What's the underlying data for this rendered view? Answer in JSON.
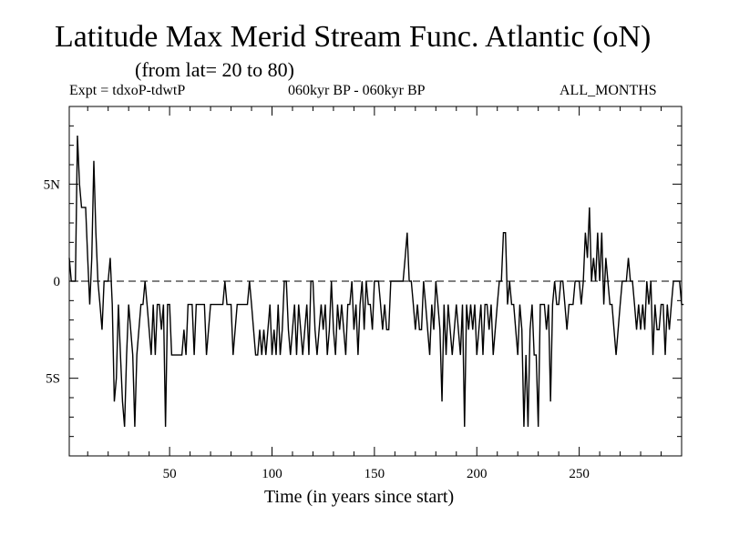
{
  "header": {
    "title": "Latitude Max Merid Stream Func. Atlantic (oN)",
    "subtitle": "(from lat= 20 to 80)",
    "expt": "Expt = tdxoP-tdwtP",
    "period": "060kyr BP - 060kyr BP",
    "months": "ALL_MONTHS"
  },
  "chart_data": {
    "type": "line",
    "title": "Latitude Max Merid Stream Func. Atlantic (oN)",
    "xlabel": "Time (in years since start)",
    "ylabel": "",
    "xlim": [
      1,
      300
    ],
    "ylim": [
      -9,
      9
    ],
    "x_ticks": [
      50,
      100,
      150,
      200,
      250
    ],
    "x_tick_labels": [
      "50",
      "100",
      "150",
      "200",
      "250"
    ],
    "y_ticks": [
      5,
      0,
      -5
    ],
    "y_tick_labels": [
      "5N",
      "0",
      "5S"
    ],
    "zero_line": "dashed",
    "grid": false,
    "series": [
      {
        "x_start": 1,
        "x_step": 1,
        "values": [
          1.2,
          0,
          0,
          0,
          7.5,
          5,
          3.8,
          3.8,
          3.8,
          1.2,
          -1.2,
          1.2,
          6.2,
          2.5,
          0,
          -1.2,
          -2.5,
          0,
          0,
          0,
          1.2,
          -1.2,
          -6.2,
          -5,
          -1.2,
          -3.8,
          -6.2,
          -7.5,
          -3.8,
          -1.2,
          -2.5,
          -3.8,
          -7.5,
          -3.8,
          -2.5,
          -1.2,
          -1.2,
          0,
          -1.2,
          -2.5,
          -3.8,
          -1.2,
          -3.8,
          -1.2,
          -1.2,
          -2.5,
          -1.2,
          -7.5,
          -1.2,
          -1.2,
          -3.8,
          -3.8,
          -3.8,
          -3.8,
          -3.8,
          -3.8,
          -2.5,
          -3.8,
          -1.2,
          -1.2,
          -1.2,
          -3.8,
          -1.2,
          -1.2,
          -1.2,
          -1.2,
          -1.2,
          -3.8,
          -2.5,
          -1.2,
          -1.2,
          -1.2,
          -1.2,
          -1.2,
          -1.2,
          -1.2,
          0,
          -1.2,
          -1.2,
          -1.2,
          -3.8,
          -2.5,
          -1.2,
          -1.2,
          -1.2,
          -1.2,
          -1.2,
          -1.2,
          0,
          -1.2,
          -2.5,
          -3.8,
          -3.8,
          -2.5,
          -3.8,
          -2.5,
          -3.8,
          -2.5,
          -1.2,
          -3.8,
          -2.5,
          -3.8,
          -1.2,
          -3.8,
          -2.5,
          0,
          0,
          -2.5,
          -3.8,
          -2.5,
          -1.2,
          -3.8,
          -1.2,
          -2.5,
          -3.8,
          -2.5,
          -1.2,
          -3.8,
          0,
          0,
          -2.5,
          -3.8,
          -2.5,
          -1.2,
          -2.5,
          -1.2,
          -3.8,
          -2.5,
          0,
          -2.5,
          -3.8,
          -1.2,
          -2.5,
          -1.2,
          -2.5,
          -3.8,
          -1.2,
          -1.2,
          0,
          -2.5,
          -1.2,
          -3.8,
          -1.2,
          0,
          -2.5,
          0,
          -1.2,
          -1.2,
          -2.5,
          0,
          0,
          0,
          -1.2,
          -2.5,
          -1.2,
          -2.5,
          -2.5,
          0,
          0,
          0,
          0,
          0,
          0,
          0,
          1.2,
          2.5,
          0,
          0,
          -1.2,
          -2.5,
          -1.2,
          -2.5,
          -2.5,
          0,
          -1.2,
          -2.5,
          -3.8,
          -1.2,
          -2.5,
          0,
          -1.2,
          -2.5,
          -6.2,
          -1.2,
          -3.8,
          -1.2,
          -2.5,
          -3.8,
          -2.5,
          -1.2,
          -2.5,
          -3.8,
          -1.2,
          -7.5,
          -1.2,
          -2.5,
          -1.2,
          -2.5,
          -1.2,
          -3.8,
          -2.5,
          -1.2,
          -3.8,
          -1.2,
          -1.2,
          -2.5,
          -1.2,
          -3.8,
          -2.5,
          -1.2,
          0,
          0,
          2.5,
          2.5,
          -1.2,
          0,
          -1.2,
          -1.2,
          -2.5,
          -3.8,
          -1.2,
          -2.5,
          -7.5,
          -3.8,
          -7.5,
          -2.5,
          -1.2,
          -3.8,
          -3.8,
          -7.5,
          -1.2,
          -1.2,
          -1.2,
          -2.5,
          -1.2,
          -6.2,
          -1.2,
          0,
          -1.2,
          -1.2,
          0,
          0,
          -1.2,
          -2.5,
          -1.2,
          -1.2,
          -1.2,
          0,
          0,
          0,
          -1.2,
          0,
          2.5,
          1.2,
          3.8,
          0,
          1.2,
          0,
          2.5,
          0,
          2.5,
          -1.2,
          1.2,
          0,
          -1.2,
          -1.2,
          -2.5,
          -3.8,
          -2.5,
          -1.2,
          0,
          0,
          0,
          1.2,
          0,
          0,
          -1.2,
          -2.5,
          -1.2,
          -2.5,
          -1.2,
          -2.5,
          0,
          -1.2,
          0,
          -3.8,
          -1.2,
          -2.5,
          -2.5,
          -1.2,
          -1.2,
          -3.8,
          -1.2,
          -2.5,
          -1.2,
          0,
          0,
          0,
          0,
          -1.2,
          -1.2
        ]
      }
    ]
  }
}
